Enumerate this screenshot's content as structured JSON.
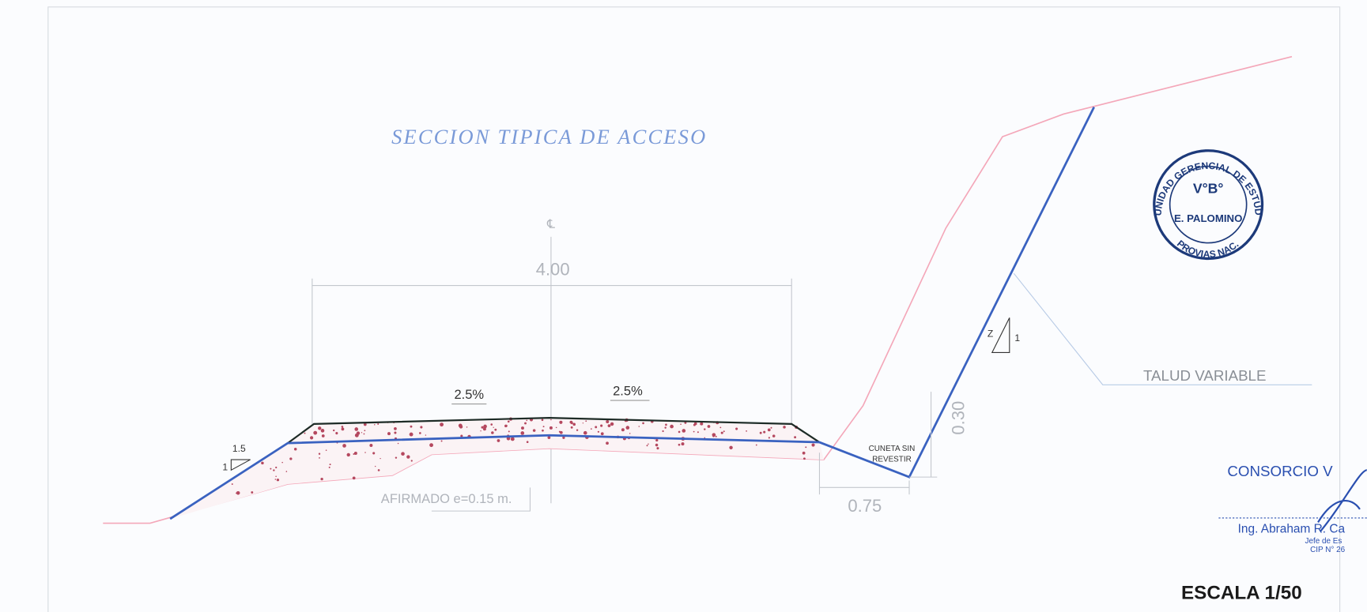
{
  "header": {
    "title": "SECCION TIPICA DE ACCESO"
  },
  "dimensions": {
    "width": "4.00",
    "crossfall_left": "2.5%",
    "crossfall_right": "2.5%",
    "ditch_depth": "0.30",
    "ditch_width": "0.75"
  },
  "labels": {
    "fill_slope_h": "1.5",
    "fill_slope_v": "1",
    "cut_slope_h": "Z",
    "cut_slope_v": "1",
    "pavement": "AFIRMADO e=0.15 m.",
    "ditch_line1": "CUNETA SIN",
    "ditch_line2": "REVESTIR",
    "slope_note": "TALUD VARIABLE"
  },
  "stamp": {
    "ring_top": "UNIDAD GERENCIAL DE ESTUDIOS",
    "ring_bottom": "PROVIAS NAC.",
    "center_top": "V°B°",
    "center_name": "E. PALOMINO"
  },
  "signature": {
    "company": "CONSORCIO V",
    "name": "Ing. Abraham R. Ca",
    "role": "Jefe de Es",
    "cip": "CIP N° 26"
  },
  "footer": {
    "scale": "ESCALA 1/50"
  }
}
